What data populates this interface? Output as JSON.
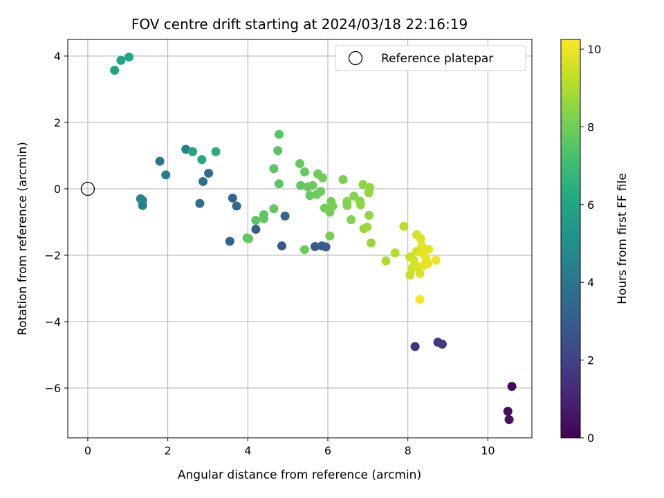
{
  "chart_data": {
    "type": "scatter",
    "title": "FOV centre drift starting at 2024/03/18 22:16:19",
    "xlabel": "Angular distance from reference (arcmin)",
    "ylabel": "Rotation from reference (arcmin)",
    "xlim": [
      -0.5,
      11.1
    ],
    "ylim": [
      -7.5,
      4.5
    ],
    "xticks": [
      0,
      2,
      4,
      6,
      8,
      10
    ],
    "yticks": [
      -6,
      -4,
      -2,
      0,
      2,
      4
    ],
    "grid": true,
    "legend": {
      "placement": "top-right",
      "entries": [
        "Reference platepar"
      ]
    },
    "reference_point": {
      "x": 0,
      "y": 0,
      "label": "Reference platepar"
    },
    "colorbar": {
      "label": "Hours from first FF file",
      "colormap": "viridis",
      "range": [
        0,
        10.25
      ],
      "ticks": [
        0,
        2,
        4,
        6,
        8,
        10
      ]
    },
    "points": [
      {
        "x": 10.6,
        "y": -5.95,
        "c": 0.2
      },
      {
        "x": 10.5,
        "y": -6.7,
        "c": 0.3
      },
      {
        "x": 10.53,
        "y": -6.95,
        "c": 0.4
      },
      {
        "x": 8.18,
        "y": -4.75,
        "c": 1.5
      },
      {
        "x": 8.75,
        "y": -4.62,
        "c": 1.6
      },
      {
        "x": 8.86,
        "y": -4.68,
        "c": 1.7
      },
      {
        "x": 4.85,
        "y": -1.72,
        "c": 2.8
      },
      {
        "x": 5.68,
        "y": -1.74,
        "c": 2.9
      },
      {
        "x": 5.85,
        "y": -1.72,
        "c": 3.0
      },
      {
        "x": 5.95,
        "y": -1.75,
        "c": 3.0
      },
      {
        "x": 4.2,
        "y": -1.22,
        "c": 3.0
      },
      {
        "x": 3.55,
        "y": -1.58,
        "c": 3.3
      },
      {
        "x": 4.93,
        "y": -0.82,
        "c": 3.4
      },
      {
        "x": 3.62,
        "y": -0.28,
        "c": 3.4
      },
      {
        "x": 3.72,
        "y": -0.52,
        "c": 3.5
      },
      {
        "x": 2.8,
        "y": -0.44,
        "c": 3.7
      },
      {
        "x": 2.88,
        "y": 0.22,
        "c": 3.8
      },
      {
        "x": 3.02,
        "y": 0.47,
        "c": 3.7
      },
      {
        "x": 1.8,
        "y": 0.83,
        "c": 4.0
      },
      {
        "x": 1.95,
        "y": 0.42,
        "c": 4.2
      },
      {
        "x": 1.32,
        "y": -0.3,
        "c": 4.6
      },
      {
        "x": 1.37,
        "y": -0.35,
        "c": 4.6
      },
      {
        "x": 1.37,
        "y": -0.5,
        "c": 4.4
      },
      {
        "x": 2.45,
        "y": 1.19,
        "c": 4.5
      },
      {
        "x": 2.62,
        "y": 1.12,
        "c": 6.0
      },
      {
        "x": 2.85,
        "y": 0.88,
        "c": 6.1
      },
      {
        "x": 3.2,
        "y": 1.12,
        "c": 6.3
      },
      {
        "x": 0.67,
        "y": 3.57,
        "c": 5.9
      },
      {
        "x": 0.83,
        "y": 3.87,
        "c": 6.0
      },
      {
        "x": 1.03,
        "y": 3.97,
        "c": 6.1
      },
      {
        "x": 4.78,
        "y": 1.64,
        "c": 7.5
      },
      {
        "x": 4.75,
        "y": 1.15,
        "c": 7.5
      },
      {
        "x": 4.65,
        "y": 0.61,
        "c": 7.6
      },
      {
        "x": 4.78,
        "y": 0.15,
        "c": 7.6
      },
      {
        "x": 4.65,
        "y": -0.6,
        "c": 7.7
      },
      {
        "x": 4.4,
        "y": -0.78,
        "c": 7.6
      },
      {
        "x": 4.4,
        "y": -0.9,
        "c": 7.7
      },
      {
        "x": 4.2,
        "y": -0.95,
        "c": 7.6
      },
      {
        "x": 3.98,
        "y": -1.48,
        "c": 7.6
      },
      {
        "x": 4.02,
        "y": -1.5,
        "c": 7.7
      },
      {
        "x": 5.3,
        "y": 0.76,
        "c": 7.8
      },
      {
        "x": 5.42,
        "y": 0.51,
        "c": 7.8
      },
      {
        "x": 5.32,
        "y": 0.1,
        "c": 7.7
      },
      {
        "x": 5.5,
        "y": 0.06,
        "c": 7.8
      },
      {
        "x": 5.62,
        "y": 0.1,
        "c": 7.9
      },
      {
        "x": 5.55,
        "y": -0.2,
        "c": 7.8
      },
      {
        "x": 5.72,
        "y": -0.17,
        "c": 7.9
      },
      {
        "x": 5.82,
        "y": -0.08,
        "c": 7.9
      },
      {
        "x": 5.75,
        "y": 0.45,
        "c": 7.9
      },
      {
        "x": 5.87,
        "y": 0.33,
        "c": 8.0
      },
      {
        "x": 5.92,
        "y": -0.58,
        "c": 8.0
      },
      {
        "x": 6.05,
        "y": -0.7,
        "c": 8.0
      },
      {
        "x": 6.08,
        "y": -0.38,
        "c": 8.1
      },
      {
        "x": 6.12,
        "y": -0.52,
        "c": 8.1
      },
      {
        "x": 6.0,
        "y": -0.6,
        "c": 8.1
      },
      {
        "x": 6.05,
        "y": -1.42,
        "c": 8.1
      },
      {
        "x": 5.42,
        "y": -1.83,
        "c": 7.9
      },
      {
        "x": 6.38,
        "y": 0.28,
        "c": 8.2
      },
      {
        "x": 6.48,
        "y": -0.38,
        "c": 8.3
      },
      {
        "x": 6.48,
        "y": -0.5,
        "c": 8.3
      },
      {
        "x": 6.58,
        "y": -0.93,
        "c": 8.3
      },
      {
        "x": 6.65,
        "y": -0.22,
        "c": 8.4
      },
      {
        "x": 6.8,
        "y": -0.37,
        "c": 8.4
      },
      {
        "x": 6.82,
        "y": -0.48,
        "c": 8.5
      },
      {
        "x": 6.88,
        "y": 0.13,
        "c": 8.5
      },
      {
        "x": 7.02,
        "y": -0.12,
        "c": 8.6
      },
      {
        "x": 7.05,
        "y": 0.04,
        "c": 8.6
      },
      {
        "x": 7.03,
        "y": -0.8,
        "c": 8.6
      },
      {
        "x": 6.9,
        "y": -1.2,
        "c": 8.6
      },
      {
        "x": 6.98,
        "y": -1.15,
        "c": 8.7
      },
      {
        "x": 7.08,
        "y": -1.63,
        "c": 8.7
      },
      {
        "x": 7.45,
        "y": -2.17,
        "c": 9.0
      },
      {
        "x": 7.68,
        "y": -1.93,
        "c": 9.1
      },
      {
        "x": 7.9,
        "y": -1.13,
        "c": 9.2
      },
      {
        "x": 8.05,
        "y": -2.05,
        "c": 9.4
      },
      {
        "x": 8.05,
        "y": -2.6,
        "c": 9.4
      },
      {
        "x": 8.1,
        "y": -2.4,
        "c": 9.5
      },
      {
        "x": 8.15,
        "y": -2.15,
        "c": 9.6
      },
      {
        "x": 8.22,
        "y": -1.38,
        "c": 9.6
      },
      {
        "x": 8.22,
        "y": -1.88,
        "c": 9.6
      },
      {
        "x": 8.25,
        "y": -2.35,
        "c": 9.7
      },
      {
        "x": 8.3,
        "y": -2.55,
        "c": 9.7
      },
      {
        "x": 8.32,
        "y": -1.5,
        "c": 9.7
      },
      {
        "x": 8.35,
        "y": -1.72,
        "c": 9.8
      },
      {
        "x": 8.38,
        "y": -1.95,
        "c": 9.8
      },
      {
        "x": 8.4,
        "y": -2.3,
        "c": 9.8
      },
      {
        "x": 8.45,
        "y": -2.1,
        "c": 9.9
      },
      {
        "x": 8.5,
        "y": -2.25,
        "c": 9.9
      },
      {
        "x": 8.52,
        "y": -1.82,
        "c": 9.9
      },
      {
        "x": 8.7,
        "y": -2.15,
        "c": 10.0
      },
      {
        "x": 8.3,
        "y": -3.33,
        "c": 10.1
      }
    ]
  }
}
